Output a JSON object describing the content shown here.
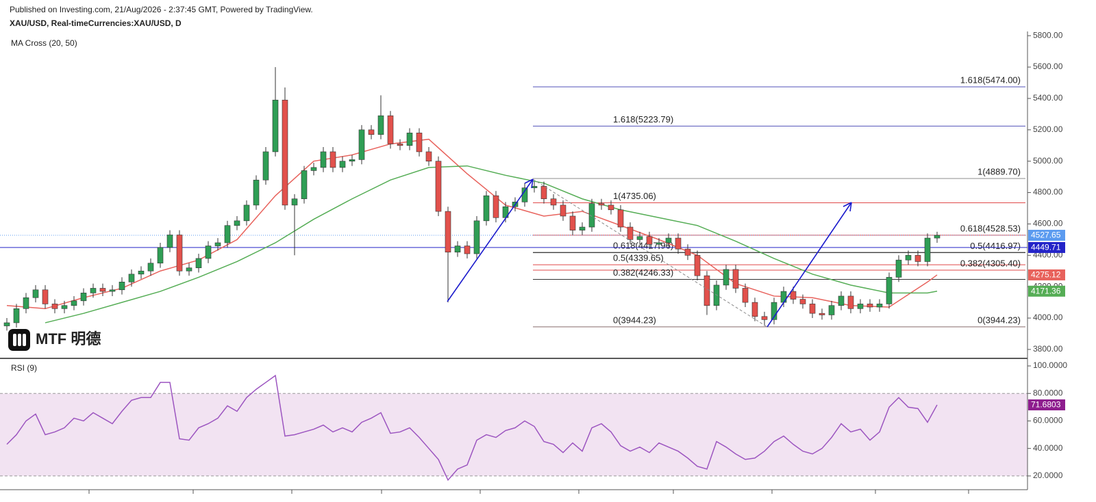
{
  "header": {
    "published": "Published on Investing.com, 21/Aug/2026 - 2:37:45 GMT, Powered by TradingView.",
    "symbol": "XAU/USD, Real-timeCurrencies:XAU/USD, D",
    "logo": "MTF 明德"
  },
  "chart_data": [
    {
      "type": "candlestick",
      "title": "MA Cross (20, 50)",
      "up_color": "#2f9e55",
      "down_color": "#e2514c",
      "ylim": [
        3743,
        5827
      ],
      "yticks": [
        {
          "value": 3800,
          "label": "3800.00"
        },
        {
          "value": 4000,
          "label": "4000.00"
        },
        {
          "value": 4200,
          "label": "4200.00"
        },
        {
          "value": 4400,
          "label": "4400.00"
        },
        {
          "value": 4600,
          "label": "4600.00"
        },
        {
          "value": 4800,
          "label": "4800.00"
        },
        {
          "value": 5000,
          "label": "5000.00"
        },
        {
          "value": 5200,
          "label": "5200.00"
        },
        {
          "value": 5400,
          "label": "5400.00"
        },
        {
          "value": 5600,
          "label": "5600.00"
        },
        {
          "value": 5800,
          "label": "5800.00"
        }
      ],
      "last_color": "#5b9bf0",
      "candles": {
        "open": [
          3950,
          3970,
          4060,
          4130,
          4180,
          4090,
          4060,
          4080,
          4110,
          4160,
          4190,
          4170,
          4180,
          4230,
          4280,
          4300,
          4350,
          4450,
          4530,
          4300,
          4320,
          4380,
          4460,
          4480,
          4590,
          4620,
          4720,
          4880,
          5060,
          5390,
          4720,
          4760,
          4940,
          4960,
          5060,
          4960,
          5000,
          5010,
          5200,
          5170,
          5290,
          5110,
          5100,
          5180,
          5060,
          5000,
          4680,
          4420,
          4460,
          4410,
          4620,
          4780,
          4640,
          4710,
          4740,
          4830,
          4840,
          4760,
          4720,
          4650,
          4560,
          4580,
          4730,
          4720,
          4690,
          4580,
          4500,
          4520,
          4470,
          4480,
          4510,
          4440,
          4400,
          4270,
          4080,
          4210,
          4310,
          4190,
          4100,
          4010,
          3990,
          4100,
          4170,
          4120,
          4090,
          4030,
          4020,
          4080,
          4140,
          4060,
          4090,
          4070,
          4090,
          4260,
          4370,
          4400,
          4360,
          4510
        ],
        "high": [
          4000,
          4090,
          4160,
          4210,
          4210,
          4120,
          4110,
          4140,
          4190,
          4220,
          4220,
          4210,
          4260,
          4310,
          4330,
          4380,
          4480,
          4560,
          4560,
          4350,
          4410,
          4490,
          4510,
          4620,
          4650,
          4750,
          4910,
          5090,
          5600,
          5470,
          4790,
          4970,
          4990,
          5090,
          5090,
          5030,
          5040,
          5230,
          5230,
          5420,
          5320,
          5140,
          5210,
          5210,
          5090,
          5030,
          4710,
          4490,
          4490,
          4650,
          4810,
          4810,
          4740,
          4770,
          4860,
          4870,
          4870,
          4790,
          4750,
          4680,
          4610,
          4760,
          4760,
          4750,
          4720,
          4610,
          4550,
          4550,
          4510,
          4540,
          4540,
          4470,
          4430,
          4300,
          4240,
          4340,
          4340,
          4220,
          4130,
          4040,
          4130,
          4200,
          4200,
          4150,
          4120,
          4060,
          4110,
          4170,
          4170,
          4120,
          4120,
          4120,
          4290,
          4400,
          4430,
          4430,
          4540,
          4550
        ],
        "low": [
          3920,
          3940,
          4030,
          4100,
          4060,
          4030,
          4030,
          4050,
          4080,
          4130,
          4140,
          4140,
          4150,
          4200,
          4250,
          4270,
          4320,
          4420,
          4270,
          4270,
          4290,
          4350,
          4430,
          4450,
          4560,
          4590,
          4690,
          4850,
          5030,
          4690,
          4400,
          4730,
          4910,
          4930,
          4930,
          4930,
          4970,
          4980,
          5140,
          5140,
          5080,
          5070,
          5070,
          5030,
          4970,
          4650,
          4100,
          4390,
          4380,
          4380,
          4590,
          4610,
          4610,
          4680,
          4710,
          4800,
          4730,
          4690,
          4620,
          4530,
          4530,
          4550,
          4690,
          4660,
          4550,
          4470,
          4470,
          4440,
          4440,
          4450,
          4410,
          4370,
          4240,
          4020,
          4050,
          4180,
          4160,
          4070,
          3980,
          3950,
          3960,
          4070,
          4090,
          4060,
          4000,
          3990,
          3990,
          4050,
          4030,
          4030,
          4040,
          4040,
          4060,
          4230,
          4340,
          4330,
          4330,
          4480
        ],
        "close": [
          3970,
          4060,
          4130,
          4180,
          4090,
          4060,
          4080,
          4110,
          4160,
          4190,
          4170,
          4180,
          4230,
          4280,
          4300,
          4350,
          4450,
          4530,
          4300,
          4320,
          4380,
          4460,
          4480,
          4590,
          4620,
          4720,
          4880,
          5060,
          5390,
          4720,
          4760,
          4940,
          4960,
          5060,
          4960,
          5000,
          5010,
          5200,
          5170,
          5290,
          5110,
          5100,
          5180,
          5060,
          5000,
          4680,
          4420,
          4460,
          4410,
          4620,
          4780,
          4640,
          4710,
          4740,
          4830,
          4840,
          4760,
          4720,
          4650,
          4560,
          4580,
          4730,
          4720,
          4690,
          4580,
          4500,
          4520,
          4470,
          4480,
          4510,
          4440,
          4400,
          4270,
          4080,
          4210,
          4310,
          4190,
          4100,
          4010,
          3990,
          4100,
          4170,
          4120,
          4090,
          4030,
          4020,
          4080,
          4140,
          4060,
          4090,
          4070,
          4090,
          4260,
          4370,
          4400,
          4360,
          4510,
          4527.65
        ]
      },
      "series": [
        {
          "color": "#e8625c",
          "x": [
            0,
            4,
            8,
            12,
            16,
            20,
            24,
            28,
            32,
            36,
            40,
            44,
            48,
            52,
            56,
            60,
            64,
            68,
            72,
            76,
            80,
            84,
            88,
            92,
            96,
            97
          ],
          "values": [
            4080,
            4060,
            4130,
            4190,
            4300,
            4370,
            4500,
            4780,
            5000,
            5040,
            5110,
            5140,
            4920,
            4720,
            4650,
            4680,
            4590,
            4500,
            4400,
            4220,
            4140,
            4130,
            4080,
            4070,
            4230,
            4275.12
          ]
        },
        {
          "color": "#55ad55",
          "x": [
            4,
            8,
            12,
            16,
            20,
            24,
            28,
            32,
            36,
            40,
            44,
            48,
            52,
            56,
            60,
            64,
            68,
            72,
            76,
            80,
            84,
            88,
            92,
            96,
            97
          ],
          "values": [
            3970,
            4030,
            4100,
            4170,
            4260,
            4360,
            4480,
            4630,
            4760,
            4880,
            4960,
            4970,
            4910,
            4860,
            4760,
            4690,
            4640,
            4590,
            4490,
            4380,
            4280,
            4210,
            4160,
            4160,
            4171.36
          ]
        }
      ],
      "hlines": [
        {
          "value": 4449.71,
          "color": "#2323c8"
        }
      ],
      "fib_levels": [
        {
          "value": 5474.0,
          "label": "1.618(5474.00)",
          "color": "#5252b8",
          "side": "right"
        },
        {
          "value": 5223.79,
          "label": "1.618(5223.79)",
          "color": "#5252b8",
          "side": "left"
        },
        {
          "value": 4889.7,
          "label": "1(4889.70)",
          "color": "#8c8c8c",
          "side": "right"
        },
        {
          "value": 4735.06,
          "label": "1(4735.06)",
          "color": "#e04848",
          "side": "left"
        },
        {
          "value": 4528.53,
          "label": "0.618(4528.53)",
          "color": "#e04848",
          "side": "right"
        },
        {
          "value": 4417.96,
          "label": "0.618(4417.96)",
          "color": "#333333",
          "side": "left"
        },
        {
          "value": 4416.97,
          "label": "0.5(4416.97)",
          "color": "#333333",
          "side": "right"
        },
        {
          "value": 4339.65,
          "label": "0.5(4339.65)",
          "color": "#e04848",
          "side": "left"
        },
        {
          "value": 4305.4,
          "label": "0.382(4305.40)",
          "color": "#e04848",
          "side": "right"
        },
        {
          "value": 4246.33,
          "label": "0.382(4246.33)",
          "color": "#333333",
          "side": "left"
        },
        {
          "value": 3944.23,
          "label": "0(3944.23)",
          "color": "#e04848",
          "side": "left"
        },
        {
          "value": 3944.23,
          "label": "0(3944.23)",
          "color": "#8c8c8c",
          "side": "right"
        }
      ]
    },
    {
      "type": "line",
      "title": "RSI (9)",
      "color": "#9c55c0",
      "last_color": "#8e1d8e",
      "band": [
        20,
        80
      ],
      "band_color": "#f2e3f2",
      "ylim": [
        11,
        104
      ],
      "yticks": [
        {
          "value": 20,
          "label": "20.0000"
        },
        {
          "value": 40,
          "label": "40.0000"
        },
        {
          "value": 60,
          "label": "60.0000"
        },
        {
          "value": 80,
          "label": "80.0000"
        },
        {
          "value": 100,
          "label": "100.0000"
        }
      ],
      "values": [
        43,
        50,
        60,
        65,
        50,
        52,
        55,
        62,
        60,
        66,
        62,
        58,
        67,
        75,
        77,
        77,
        88,
        88,
        47,
        46,
        55,
        58,
        62,
        71,
        67,
        77,
        83,
        88,
        93,
        49,
        50,
        52,
        54,
        57,
        52,
        55,
        52,
        59,
        62,
        66,
        51,
        52,
        55,
        48,
        40,
        32,
        17,
        25,
        28,
        46,
        50,
        48,
        53,
        55,
        60,
        56,
        45,
        43,
        37,
        44,
        38,
        55,
        58,
        52,
        42,
        38,
        41,
        37,
        44,
        41,
        38,
        33,
        27,
        25,
        45,
        41,
        36,
        32,
        33,
        38,
        45,
        49,
        43,
        38,
        36,
        40,
        48,
        58,
        52,
        54,
        46,
        52,
        70,
        77,
        70,
        69,
        59,
        71.6803
      ]
    }
  ]
}
